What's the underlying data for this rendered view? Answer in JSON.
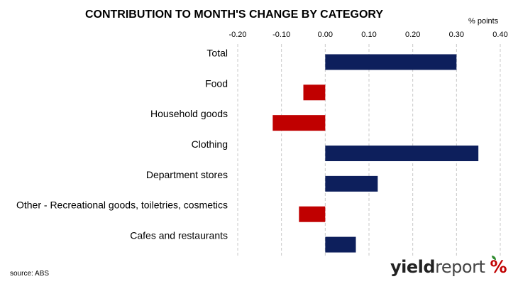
{
  "chart_data": {
    "type": "bar",
    "orientation": "horizontal",
    "title": "CONTRIBUTION TO MONTH'S CHANGE BY CATEGORY",
    "unit_label": "% points",
    "categories": [
      "Total",
      "Food",
      "Household goods",
      "Clothing",
      "Department stores",
      "Other - Recreational goods, toiletries, cosmetics",
      "Cafes and restaurants"
    ],
    "values": [
      0.3,
      -0.05,
      -0.12,
      0.35,
      0.12,
      -0.06,
      0.07
    ],
    "xlim": [
      -0.2,
      0.4
    ],
    "xticks": [
      "-0.20",
      "-0.10",
      "0.00",
      "0.10",
      "0.20",
      "0.30",
      "0.40"
    ],
    "x_axis_position": "top",
    "gridlines": "vertical-dashed",
    "legend": "none",
    "colors": {
      "positive": "#0d1f5c",
      "negative": "#c00000"
    }
  },
  "footer": {
    "source": "source: ABS",
    "logo_yield": "yield",
    "logo_report": "report",
    "logo_percent": "%"
  }
}
